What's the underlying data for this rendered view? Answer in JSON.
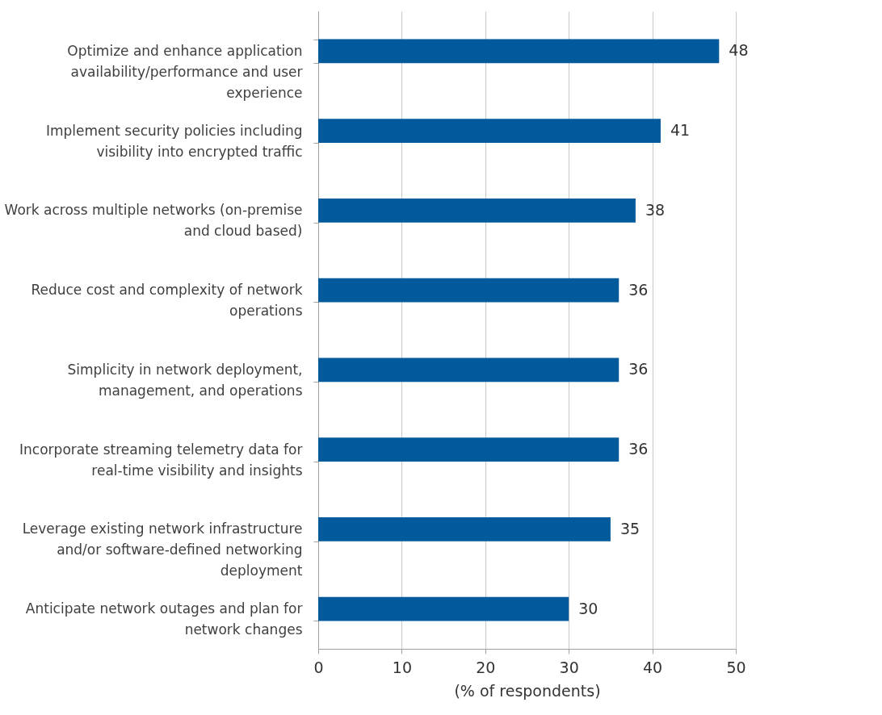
{
  "chart_data": {
    "type": "bar",
    "orientation": "horizontal",
    "xlabel": "(% of respondents)",
    "categories": [
      "Optimize and enhance application availability/performance and user experience",
      "Implement security policies including visibility into encrypted traffic",
      "Work across multiple networks (on-premise and cloud based)",
      "Reduce cost and complexity of network operations",
      "Simplicity in network deployment, management, and operations",
      "Incorporate streaming telemetry data for real-time visibility and insights",
      "Leverage existing network infrastructure and/or software-defined networking deployment",
      "Anticipate network outages and plan for network changes"
    ],
    "values": [
      48,
      41,
      38,
      36,
      36,
      36,
      35,
      30
    ],
    "color": "#005a9c",
    "xlim": [
      0,
      50
    ],
    "xticks": [
      0,
      10,
      20,
      30,
      40,
      50
    ],
    "grid": "x",
    "data_labels": true
  }
}
